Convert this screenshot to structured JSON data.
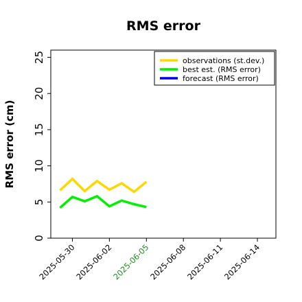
{
  "chart_data": {
    "type": "line",
    "title": "RMS error",
    "xlabel": "",
    "ylabel": "RMS error (cm)",
    "x_ticks": [
      "2025-05-30",
      "2025-06-02",
      "2025-06-05",
      "2025-06-08",
      "2025-06-11",
      "2025-06-14"
    ],
    "x_tick_colors": [
      "#000000",
      "#000000",
      "#228b22",
      "#000000",
      "#000000",
      "#000000"
    ],
    "xlim": [
      "2025-05-28T06:00",
      "2025-06-15T12:00"
    ],
    "ylim": [
      0,
      26
    ],
    "y_ticks": [
      0,
      5,
      10,
      15,
      20,
      25
    ],
    "grid": false,
    "legend": {
      "position": "top-right",
      "entries": [
        {
          "name": "observations (st.dev.)",
          "color": "#ffd700"
        },
        {
          "name": "best est. (RMS error)",
          "color": "#00ee00"
        },
        {
          "name": "forecast (RMS error)",
          "color": "#0000ee"
        }
      ]
    },
    "series": [
      {
        "name": "observations (st.dev.)",
        "color": "#ffd700",
        "x": [
          "2025-05-29",
          "2025-05-30",
          "2025-05-31",
          "2025-06-01",
          "2025-06-02",
          "2025-06-03",
          "2025-06-04",
          "2025-06-05"
        ],
        "values": [
          6.6,
          8.2,
          6.5,
          7.9,
          6.7,
          7.6,
          6.4,
          7.8
        ]
      },
      {
        "name": "best est. (RMS error)",
        "color": "#00ee00",
        "x": [
          "2025-05-29",
          "2025-05-30",
          "2025-05-31",
          "2025-06-01",
          "2025-06-02",
          "2025-06-03",
          "2025-06-04",
          "2025-06-05"
        ],
        "values": [
          4.2,
          5.7,
          5.1,
          5.8,
          4.4,
          5.2,
          4.7,
          4.3
        ]
      },
      {
        "name": "forecast (RMS error)",
        "color": "#0000ee",
        "x": [],
        "values": []
      }
    ]
  }
}
